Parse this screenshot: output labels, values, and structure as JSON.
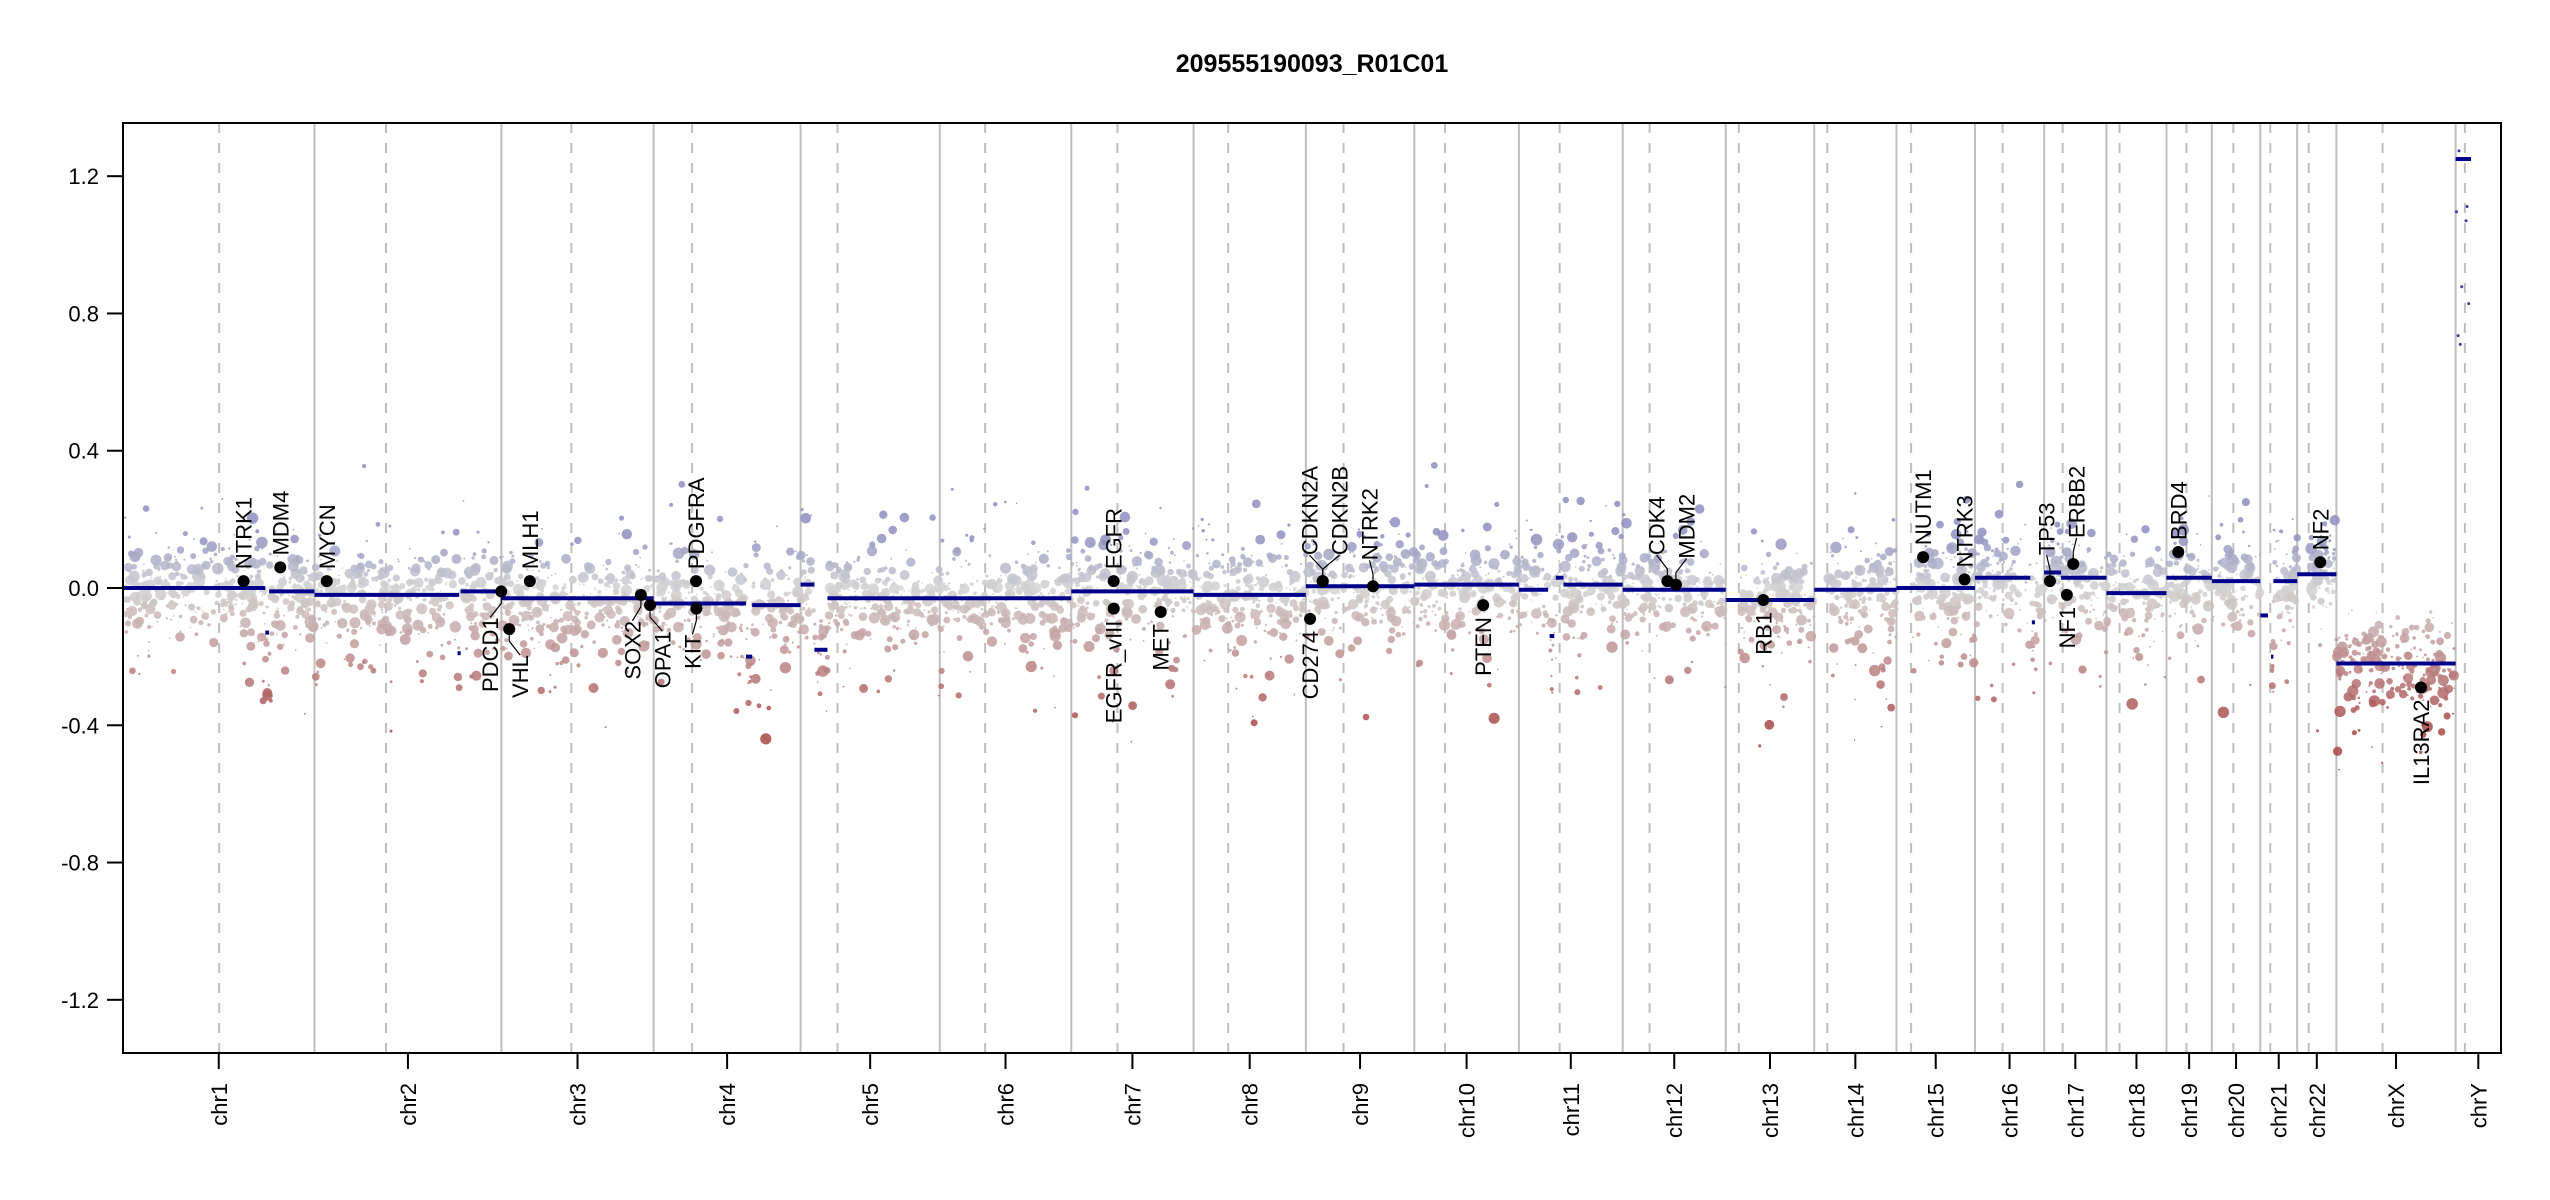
{
  "chart_data": {
    "type": "scatter",
    "title": "209555190093_R01C01",
    "xlabel": "",
    "ylabel": "",
    "ylim": [
      -1.355,
      1.355
    ],
    "yticks": [
      -1.2,
      -0.8,
      -0.4,
      0.0,
      0.4,
      0.8,
      1.2
    ],
    "ytick_labels": [
      "-1.2",
      "-0.8",
      "-0.4",
      "0.0",
      "0.4",
      "0.8",
      "1.2"
    ],
    "chromosomes": [
      {
        "name": "chr1",
        "length": 249,
        "centromere": 125
      },
      {
        "name": "chr2",
        "length": 243,
        "centromere": 93
      },
      {
        "name": "chr3",
        "length": 198,
        "centromere": 91
      },
      {
        "name": "chr4",
        "length": 191,
        "centromere": 50
      },
      {
        "name": "chr5",
        "length": 181,
        "centromere": 48
      },
      {
        "name": "chr6",
        "length": 171,
        "centromere": 59
      },
      {
        "name": "chr7",
        "length": 159,
        "centromere": 60
      },
      {
        "name": "chr8",
        "length": 146,
        "centromere": 45
      },
      {
        "name": "chr9",
        "length": 141,
        "centromere": 49
      },
      {
        "name": "chr10",
        "length": 136,
        "centromere": 40
      },
      {
        "name": "chr11",
        "length": 135,
        "centromere": 53
      },
      {
        "name": "chr12",
        "length": 134,
        "centromere": 35
      },
      {
        "name": "chr13",
        "length": 115,
        "centromere": 17
      },
      {
        "name": "chr14",
        "length": 107,
        "centromere": 17
      },
      {
        "name": "chr15",
        "length": 102,
        "centromere": 19
      },
      {
        "name": "chr16",
        "length": 90,
        "centromere": 36
      },
      {
        "name": "chr17",
        "length": 81,
        "centromere": 24
      },
      {
        "name": "chr18",
        "length": 78,
        "centromere": 17
      },
      {
        "name": "chr19",
        "length": 59,
        "centromere": 26
      },
      {
        "name": "chr20",
        "length": 63,
        "centromere": 28
      },
      {
        "name": "chr21",
        "length": 48,
        "centromere": 13
      },
      {
        "name": "chr22",
        "length": 51,
        "centromere": 15
      },
      {
        "name": "chrX",
        "length": 155,
        "centromere": 60
      },
      {
        "name": "chrY",
        "length": 59,
        "centromere": 12
      }
    ],
    "segments": [
      [
        "chr1",
        0,
        185,
        0.0
      ],
      [
        "chr1",
        185,
        190,
        -0.13
      ],
      [
        "chr1",
        190,
        249,
        -0.01
      ],
      [
        "chr2",
        0,
        188,
        -0.02
      ],
      [
        "chr2",
        186,
        190,
        -0.19
      ],
      [
        "chr2",
        190,
        243,
        -0.01
      ],
      [
        "chr3",
        0,
        198,
        -0.03
      ],
      [
        "chr4",
        0,
        120,
        -0.045
      ],
      [
        "chr4",
        120,
        128,
        -0.2
      ],
      [
        "chr4",
        128,
        191,
        -0.05
      ],
      [
        "chr5",
        0,
        18,
        0.01
      ],
      [
        "chr5",
        18,
        35,
        -0.18
      ],
      [
        "chr5",
        35,
        181,
        -0.03
      ],
      [
        "chr6",
        0,
        171,
        -0.03
      ],
      [
        "chr7",
        0,
        159,
        -0.01
      ],
      [
        "chr8",
        0,
        146,
        -0.02
      ],
      [
        "chr9",
        0,
        141,
        0.005
      ],
      [
        "chr10",
        0,
        136,
        0.01
      ],
      [
        "chr11",
        0,
        38,
        -0.005
      ],
      [
        "chr11",
        40,
        46,
        -0.14
      ],
      [
        "chr11",
        48,
        58,
        0.03
      ],
      [
        "chr11",
        58,
        135,
        0.01
      ],
      [
        "chr12",
        0,
        134,
        -0.005
      ],
      [
        "chr13",
        0,
        115,
        -0.035
      ],
      [
        "chr14",
        0,
        107,
        -0.005
      ],
      [
        "chr15",
        0,
        102,
        0.0
      ],
      [
        "chr16",
        0,
        72,
        0.03
      ],
      [
        "chr16",
        74,
        78,
        -0.1
      ],
      [
        "chr17",
        0,
        22,
        0.045
      ],
      [
        "chr17",
        22,
        81,
        0.03
      ],
      [
        "chr18",
        0,
        78,
        -0.015
      ],
      [
        "chr19",
        0,
        59,
        0.03
      ],
      [
        "chr20",
        0,
        63,
        0.02
      ],
      [
        "chr21",
        0,
        10,
        -0.08
      ],
      [
        "chr21",
        14,
        17,
        -0.2
      ],
      [
        "chr21",
        17,
        48,
        0.02
      ],
      [
        "chr22",
        0,
        51,
        0.04
      ],
      [
        "chrX",
        0,
        155,
        -0.22
      ],
      [
        "chrY",
        0,
        20,
        1.25
      ]
    ],
    "genes": [
      {
        "name": "NTRK1",
        "chr": "chr1",
        "pos": 156.8,
        "value": 0.02,
        "side": "above"
      },
      {
        "name": "MDM4",
        "chr": "chr1",
        "pos": 204.5,
        "value": 0.06,
        "side": "above"
      },
      {
        "name": "MYCN",
        "chr": "chr2",
        "pos": 16.0,
        "value": 0.02,
        "side": "above"
      },
      {
        "name": "PDCD1",
        "chr": "chr2",
        "pos": 242.8,
        "value": -0.01,
        "side": "below"
      },
      {
        "name": "VHL",
        "chr": "chr3",
        "pos": 10.2,
        "value": -0.12,
        "side": "below"
      },
      {
        "name": "MLH1",
        "chr": "chr3",
        "pos": 37.0,
        "value": 0.02,
        "side": "above"
      },
      {
        "name": "SOX2",
        "chr": "chr3",
        "pos": 181.4,
        "value": -0.02,
        "side": "below"
      },
      {
        "name": "OPA1",
        "chr": "chr3",
        "pos": 193.3,
        "value": -0.05,
        "side": "below"
      },
      {
        "name": "PDGFRA",
        "chr": "chr4",
        "pos": 55.1,
        "value": 0.02,
        "side": "above"
      },
      {
        "name": "KIT",
        "chr": "chr4",
        "pos": 55.5,
        "value": -0.06,
        "side": "below"
      },
      {
        "name": "EGFR",
        "chr": "chr7",
        "pos": 55.1,
        "value": 0.02,
        "side": "above"
      },
      {
        "name": "EGFR_vIII",
        "chr": "chr7",
        "pos": 55.2,
        "value": -0.06,
        "side": "below"
      },
      {
        "name": "MET",
        "chr": "chr7",
        "pos": 116.3,
        "value": -0.07,
        "side": "below"
      },
      {
        "name": "CD274",
        "chr": "chr9",
        "pos": 5.5,
        "value": -0.09,
        "side": "below"
      },
      {
        "name": "CDKN2A",
        "chr": "chr9",
        "pos": 21.9,
        "value": 0.02,
        "side": "above"
      },
      {
        "name": "CDKN2B",
        "chr": "chr9",
        "pos": 22.0,
        "value": 0.02,
        "side": "above"
      },
      {
        "name": "NTRK2",
        "chr": "chr9",
        "pos": 87.3,
        "value": 0.005,
        "side": "above"
      },
      {
        "name": "PTEN",
        "chr": "chr10",
        "pos": 89.6,
        "value": -0.05,
        "side": "below"
      },
      {
        "name": "CDK4",
        "chr": "chr12",
        "pos": 58.1,
        "value": 0.02,
        "side": "above"
      },
      {
        "name": "MDM2",
        "chr": "chr12",
        "pos": 69.2,
        "value": 0.01,
        "side": "above"
      },
      {
        "name": "RB1",
        "chr": "chr13",
        "pos": 48.9,
        "value": -0.035,
        "side": "below"
      },
      {
        "name": "NUTM1",
        "chr": "chr15",
        "pos": 34.6,
        "value": 0.09,
        "side": "above"
      },
      {
        "name": "NTRK3",
        "chr": "chr15",
        "pos": 88.5,
        "value": 0.025,
        "side": "above"
      },
      {
        "name": "TP53",
        "chr": "chr17",
        "pos": 7.5,
        "value": 0.02,
        "side": "above"
      },
      {
        "name": "NF1",
        "chr": "chr17",
        "pos": 29.5,
        "value": -0.02,
        "side": "below"
      },
      {
        "name": "ERBB2",
        "chr": "chr17",
        "pos": 37.8,
        "value": 0.07,
        "side": "above"
      },
      {
        "name": "BRD4",
        "chr": "chr19",
        "pos": 15.4,
        "value": 0.105,
        "side": "above"
      },
      {
        "name": "NF2",
        "chr": "chr22",
        "pos": 30.0,
        "value": 0.075,
        "side": "above"
      },
      {
        "name": "IL13RA2",
        "chr": "chrX",
        "pos": 110.0,
        "value": -0.29,
        "side": "below"
      }
    ],
    "colors": {
      "segment": "#00008b",
      "gain": "#8e8ebf",
      "loss": "#a84848",
      "neutral": "#d3d3d3",
      "gene_point": "#000000"
    }
  }
}
